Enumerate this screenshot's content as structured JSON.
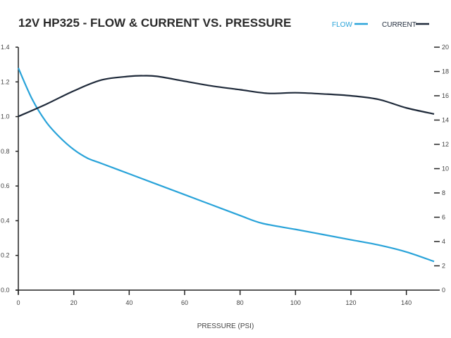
{
  "chart_data": {
    "type": "line",
    "title": "12V HP325 - FLOW & CURRENT VS. PRESSURE",
    "xlabel": "PRESSURE (PSI)",
    "ylabel": "",
    "y2label": "",
    "xlim": [
      0,
      150
    ],
    "ylim": [
      0,
      1.4
    ],
    "y2lim": [
      0,
      20
    ],
    "xticks": [
      "0",
      "20",
      "40",
      "60",
      "80",
      "100",
      "120",
      "140"
    ],
    "yticks": [
      "0.0",
      "0.2",
      "0.4",
      "0.6",
      "0.8",
      "1.0",
      "1.2",
      "1.4"
    ],
    "y2ticks": [
      "0",
      "2",
      "4",
      "6",
      "8",
      "10",
      "12",
      "14",
      "16",
      "18",
      "20"
    ],
    "grid": false,
    "legend_position": "top-right",
    "series": [
      {
        "name": "FLOW",
        "axis": "left",
        "color": "#29a3d9",
        "x": [
          0,
          5,
          10,
          15,
          20,
          25,
          30,
          40,
          50,
          60,
          70,
          80,
          88,
          100,
          110,
          120,
          130,
          140,
          150
        ],
        "y": [
          1.28,
          1.1,
          0.97,
          0.88,
          0.81,
          0.76,
          0.73,
          0.67,
          0.61,
          0.55,
          0.49,
          0.43,
          0.385,
          0.35,
          0.32,
          0.29,
          0.26,
          0.22,
          0.165
        ]
      },
      {
        "name": "CURRENT",
        "axis": "right",
        "color": "#1f2a3a",
        "x": [
          0,
          10,
          20,
          30,
          40,
          45,
          50,
          60,
          70,
          80,
          90,
          100,
          110,
          120,
          130,
          140,
          150
        ],
        "y": [
          14.3,
          15.3,
          16.4,
          17.3,
          17.6,
          17.65,
          17.6,
          17.2,
          16.8,
          16.5,
          16.2,
          16.25,
          16.15,
          16.0,
          15.7,
          15.0,
          14.5
        ]
      }
    ]
  }
}
